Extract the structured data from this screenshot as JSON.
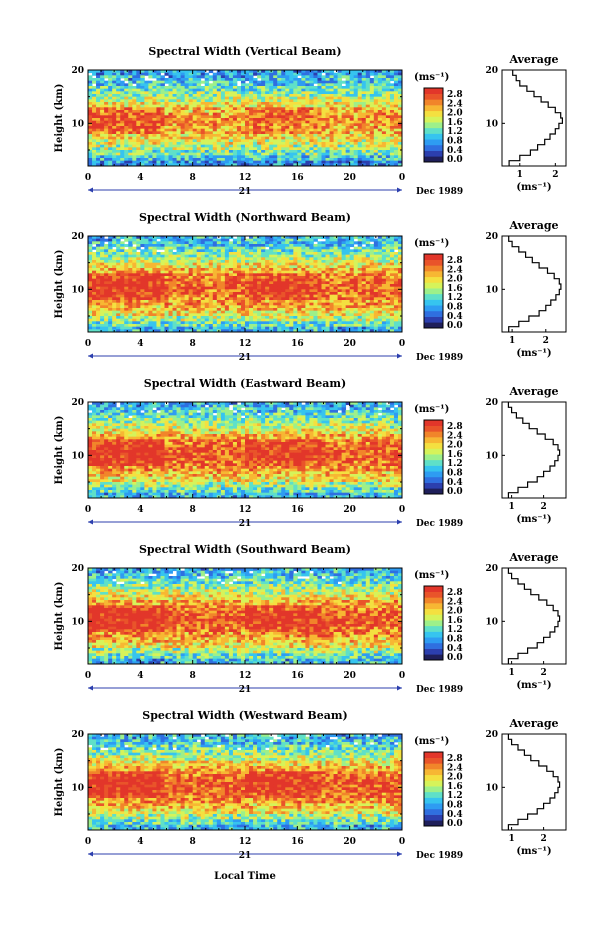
{
  "common": {
    "date_label": "Dec 1989",
    "day_label": "21",
    "unit": "(ms⁻¹)",
    "ylabel": "Height (km)",
    "avg_title": "Average",
    "xlabel": "Local Time",
    "x_ticks": [
      "0",
      "4",
      "8",
      "12",
      "16",
      "20",
      "0"
    ],
    "y_ticks": [
      "20",
      "10"
    ],
    "colorbar_ticks": [
      "2.8",
      "2.4",
      "2.0",
      "1.6",
      "1.2",
      "0.8",
      "0.4",
      "0.0"
    ]
  },
  "chart_data": [
    {
      "type": "heatmap",
      "title": "Spectral Width (Vertical Beam)",
      "xlabel": "",
      "ylabel": "Height (km)",
      "xlim": [
        0,
        24
      ],
      "ylim": [
        2,
        20
      ],
      "colorbar": {
        "label": "(ms⁻¹)",
        "range": [
          0.0,
          2.8
        ]
      },
      "profile": {
        "title": "Average",
        "xlabel": "(ms⁻¹)",
        "x_ticks": [
          "1",
          "2"
        ],
        "xlim": [
          0.5,
          2.3
        ],
        "heights": [
          2.5,
          3.5,
          4.5,
          5.5,
          6.5,
          7.5,
          8.5,
          9.5,
          10.5,
          11.5,
          12.5,
          13.5,
          14.5,
          15.5,
          16.5,
          17.5,
          18.5,
          19.5
        ],
        "values": [
          0.7,
          1.0,
          1.3,
          1.5,
          1.7,
          1.85,
          2.0,
          2.1,
          2.2,
          2.15,
          2.0,
          1.8,
          1.6,
          1.4,
          1.2,
          1.0,
          0.9,
          0.8
        ]
      }
    },
    {
      "type": "heatmap",
      "title": "Spectral Width (Northward Beam)",
      "xlabel": "",
      "ylabel": "Height (km)",
      "xlim": [
        0,
        24
      ],
      "ylim": [
        2,
        20
      ],
      "colorbar": {
        "label": "(ms⁻¹)",
        "range": [
          0.0,
          2.8
        ]
      },
      "profile": {
        "title": "Average",
        "xlabel": "(ms⁻¹)",
        "x_ticks": [
          "1",
          "2"
        ],
        "xlim": [
          0.7,
          2.6
        ],
        "heights": [
          2.5,
          3.5,
          4.5,
          5.5,
          6.5,
          7.5,
          8.5,
          9.5,
          10.5,
          11.5,
          12.5,
          13.5,
          14.5,
          15.5,
          16.5,
          17.5,
          18.5,
          19.5
        ],
        "values": [
          0.9,
          1.2,
          1.5,
          1.8,
          2.0,
          2.15,
          2.3,
          2.4,
          2.45,
          2.4,
          2.25,
          2.05,
          1.8,
          1.6,
          1.4,
          1.2,
          1.0,
          0.9
        ]
      }
    },
    {
      "type": "heatmap",
      "title": "Spectral Width (Eastward Beam)",
      "xlabel": "",
      "ylabel": "Height (km)",
      "xlim": [
        0,
        24
      ],
      "ylim": [
        2,
        20
      ],
      "colorbar": {
        "label": "(ms⁻¹)",
        "range": [
          0.0,
          2.8
        ]
      },
      "profile": {
        "title": "Average",
        "xlabel": "(ms⁻¹)",
        "x_ticks": [
          "1",
          "2"
        ],
        "xlim": [
          0.7,
          2.7
        ],
        "heights": [
          2.5,
          3.5,
          4.5,
          5.5,
          6.5,
          7.5,
          8.5,
          9.5,
          10.5,
          11.5,
          12.5,
          13.5,
          14.5,
          15.5,
          16.5,
          17.5,
          18.5,
          19.5
        ],
        "values": [
          0.9,
          1.2,
          1.5,
          1.8,
          2.0,
          2.2,
          2.35,
          2.45,
          2.5,
          2.45,
          2.3,
          2.05,
          1.8,
          1.55,
          1.35,
          1.15,
          1.0,
          0.9
        ]
      }
    },
    {
      "type": "heatmap",
      "title": "Spectral Width (Southward Beam)",
      "xlabel": "",
      "ylabel": "Height (km)",
      "xlim": [
        0,
        24
      ],
      "ylim": [
        2,
        20
      ],
      "colorbar": {
        "label": "(ms⁻¹)",
        "range": [
          0.0,
          2.8
        ]
      },
      "profile": {
        "title": "Average",
        "xlabel": "(ms⁻¹)",
        "x_ticks": [
          "1",
          "2"
        ],
        "xlim": [
          0.7,
          2.7
        ],
        "heights": [
          2.5,
          3.5,
          4.5,
          5.5,
          6.5,
          7.5,
          8.5,
          9.5,
          10.5,
          11.5,
          12.5,
          13.5,
          14.5,
          15.5,
          16.5,
          17.5,
          18.5,
          19.5
        ],
        "values": [
          0.9,
          1.2,
          1.5,
          1.8,
          2.0,
          2.2,
          2.35,
          2.45,
          2.5,
          2.45,
          2.3,
          2.1,
          1.85,
          1.6,
          1.4,
          1.2,
          1.0,
          0.9
        ]
      }
    },
    {
      "type": "heatmap",
      "title": "Spectral Width (Westward Beam)",
      "xlabel": "Local Time",
      "ylabel": "Height (km)",
      "xlim": [
        0,
        24
      ],
      "ylim": [
        2,
        20
      ],
      "colorbar": {
        "label": "(ms⁻¹)",
        "range": [
          0.0,
          2.8
        ]
      },
      "profile": {
        "title": "Average",
        "xlabel": "(ms⁻¹)",
        "x_ticks": [
          "1",
          "2"
        ],
        "xlim": [
          0.7,
          2.7
        ],
        "heights": [
          2.5,
          3.5,
          4.5,
          5.5,
          6.5,
          7.5,
          8.5,
          9.5,
          10.5,
          11.5,
          12.5,
          13.5,
          14.5,
          15.5,
          16.5,
          17.5,
          18.5,
          19.5
        ],
        "values": [
          0.9,
          1.2,
          1.5,
          1.8,
          2.0,
          2.2,
          2.35,
          2.45,
          2.5,
          2.45,
          2.3,
          2.1,
          1.85,
          1.6,
          1.4,
          1.2,
          1.0,
          0.9
        ]
      }
    }
  ]
}
